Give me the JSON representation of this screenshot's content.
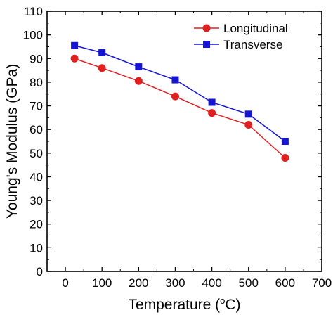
{
  "chart_data": {
    "type": "line",
    "xlabel_main": "Temperature (",
    "xlabel_sup": "o",
    "xlabel_end": "C)",
    "ylabel": "Young's Modulus (GPa)",
    "xlim": [
      -50,
      700
    ],
    "ylim": [
      0,
      110
    ],
    "xticks": [
      0,
      100,
      200,
      300,
      400,
      500,
      600,
      700
    ],
    "yticks": [
      0,
      10,
      20,
      30,
      40,
      50,
      60,
      70,
      80,
      90,
      100,
      110
    ],
    "legend_position": "top-right",
    "series": [
      {
        "name": "Longitudinal",
        "color": "#e02020",
        "marker": "circle",
        "x": [
          25,
          100,
          200,
          300,
          400,
          500,
          600
        ],
        "y": [
          90,
          86,
          80.5,
          74,
          67,
          62,
          48
        ]
      },
      {
        "name": "Transverse",
        "color": "#1414d2",
        "marker": "square",
        "x": [
          25,
          100,
          200,
          300,
          400,
          500,
          600
        ],
        "y": [
          95.5,
          92.5,
          86.5,
          81,
          71.5,
          66.5,
          55
        ]
      }
    ]
  }
}
